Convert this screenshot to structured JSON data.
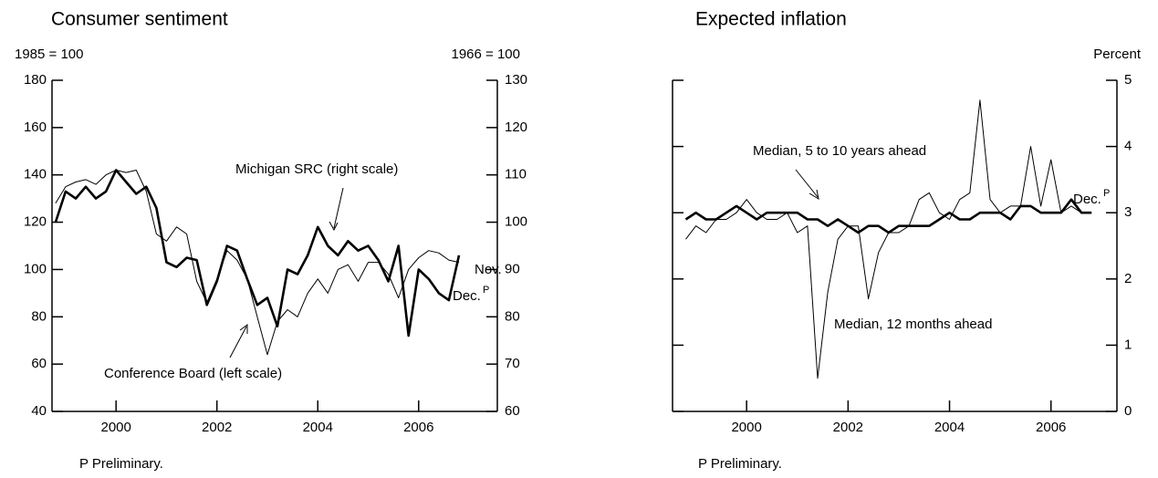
{
  "chart_data": [
    {
      "type": "line",
      "title": "Consumer sentiment",
      "y_label": "1985 = 100",
      "y2_label": "1966 = 100",
      "footnote": "P Preliminary.",
      "annotations": [
        "Michigan SRC (right scale)",
        "Conference Board (left scale)",
        "Nov.",
        "Dec.",
        "P"
      ],
      "x": [
        1998.8,
        1999.0,
        1999.2,
        1999.4,
        1999.6,
        1999.8,
        2000.0,
        2000.2,
        2000.4,
        2000.6,
        2000.8,
        2001.0,
        2001.2,
        2001.4,
        2001.6,
        2001.8,
        2002.0,
        2002.2,
        2002.4,
        2002.6,
        2002.8,
        2003.0,
        2003.2,
        2003.4,
        2003.6,
        2003.8,
        2004.0,
        2004.2,
        2004.4,
        2004.6,
        2004.8,
        2005.0,
        2005.2,
        2005.4,
        2005.6,
        2005.8,
        2006.0,
        2006.2,
        2006.4,
        2006.6,
        2006.8
      ],
      "xlim": [
        1998.73,
        2007.56
      ],
      "xticks": [
        2000,
        2002,
        2004,
        2006
      ],
      "ylim": [
        40,
        180
      ],
      "yticks": [
        40,
        60,
        80,
        100,
        120,
        140,
        160,
        180
      ],
      "y2lim": [
        60,
        130
      ],
      "y2ticks": [
        60,
        70,
        80,
        90,
        100,
        110,
        120,
        130
      ],
      "grid": false,
      "series": [
        {
          "name": "Conference Board (left scale)",
          "color": "#000000",
          "width": 1,
          "values": [
            128,
            135,
            137,
            138,
            136,
            140,
            142,
            141,
            142,
            133,
            115,
            112,
            118,
            115,
            95,
            86,
            96,
            108,
            104,
            96,
            80,
            64,
            78,
            83,
            80,
            90,
            96,
            90,
            100,
            102,
            95,
            103,
            103,
            98,
            88,
            100,
            105,
            108,
            107,
            104,
            103
          ]
        },
        {
          "name": "Michigan SRC (right scale)",
          "color": "#000000",
          "width": 2.6,
          "axis": "y2",
          "values": [
            100,
            106.5,
            105,
            107.5,
            105,
            106.5,
            111,
            108.5,
            106,
            107.5,
            103,
            91.5,
            90.5,
            92.5,
            92,
            82.5,
            87.5,
            95,
            94,
            88,
            82.5,
            84,
            78,
            90,
            89,
            93,
            99,
            95,
            93,
            96,
            94,
            95,
            92,
            87.5,
            95,
            76,
            90,
            88,
            85,
            83.5,
            93
          ]
        }
      ]
    },
    {
      "type": "line",
      "title": "Expected inflation",
      "y_label": "Percent",
      "footnote": "P Preliminary.",
      "annotations": [
        "Median, 5 to 10 years ahead",
        "Median, 12 months ahead",
        "Dec.",
        "P"
      ],
      "x": [
        1998.8,
        1999.0,
        1999.2,
        1999.4,
        1999.6,
        1999.8,
        2000.0,
        2000.2,
        2000.4,
        2000.6,
        2000.8,
        2001.0,
        2001.2,
        2001.4,
        2001.6,
        2001.8,
        2002.0,
        2002.2,
        2002.4,
        2002.6,
        2002.8,
        2003.0,
        2003.2,
        2003.4,
        2003.6,
        2003.8,
        2004.0,
        2004.2,
        2004.4,
        2004.6,
        2004.8,
        2005.0,
        2005.2,
        2005.4,
        2005.6,
        2005.8,
        2006.0,
        2006.2,
        2006.4,
        2006.6,
        2006.8
      ],
      "xlim": [
        1998.54,
        2007.3
      ],
      "xticks": [
        2000,
        2002,
        2004,
        2006
      ],
      "ylim": [
        0,
        5
      ],
      "yticks": [
        0,
        1,
        2,
        3,
        4,
        5
      ],
      "y_label_side": "right",
      "grid": false,
      "series": [
        {
          "name": "Median, 12 months ahead",
          "color": "#000000",
          "width": 1,
          "values": [
            2.6,
            2.8,
            2.7,
            2.9,
            2.9,
            3.0,
            3.2,
            3.0,
            2.9,
            2.9,
            3.0,
            2.7,
            2.8,
            0.5,
            1.8,
            2.6,
            2.8,
            2.8,
            1.7,
            2.4,
            2.7,
            2.7,
            2.8,
            3.2,
            3.3,
            3.0,
            2.9,
            3.2,
            3.3,
            4.7,
            3.2,
            3.0,
            3.1,
            3.1,
            4.0,
            3.1,
            3.8,
            3.0,
            3.1,
            3.0,
            3.0
          ]
        },
        {
          "name": "Median, 5 to 10 years ahead",
          "color": "#000000",
          "width": 2.6,
          "values": [
            2.9,
            3.0,
            2.9,
            2.9,
            3.0,
            3.1,
            3.0,
            2.9,
            3.0,
            3.0,
            3.0,
            3.0,
            2.9,
            2.9,
            2.8,
            2.9,
            2.8,
            2.7,
            2.8,
            2.8,
            2.7,
            2.8,
            2.8,
            2.8,
            2.8,
            2.9,
            3.0,
            2.9,
            2.9,
            3.0,
            3.0,
            3.0,
            2.9,
            3.1,
            3.1,
            3.0,
            3.0,
            3.0,
            3.2,
            3.0,
            3.0
          ]
        }
      ]
    }
  ]
}
